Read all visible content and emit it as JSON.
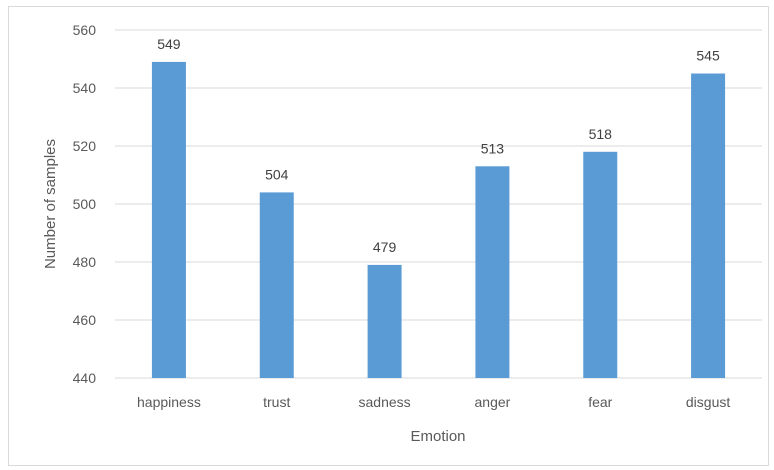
{
  "chart_data": {
    "type": "bar",
    "title": "",
    "xlabel": "Emotion",
    "ylabel": "Number of samples",
    "categories": [
      "happiness",
      "trust",
      "sadness",
      "anger",
      "fear",
      "disgust"
    ],
    "values": [
      549,
      504,
      479,
      513,
      518,
      545
    ],
    "data_labels": [
      "549",
      "504",
      "479",
      "513",
      "518",
      "545"
    ],
    "ylim": [
      440,
      560
    ],
    "yticks": [
      440,
      460,
      480,
      500,
      520,
      540,
      560
    ],
    "ytick_labels": [
      "440",
      "460",
      "480",
      "500",
      "520",
      "540",
      "560"
    ],
    "grid": true,
    "legend": "none",
    "bar_color": "#5b9bd5",
    "grid_color": "#d9d9d9"
  }
}
